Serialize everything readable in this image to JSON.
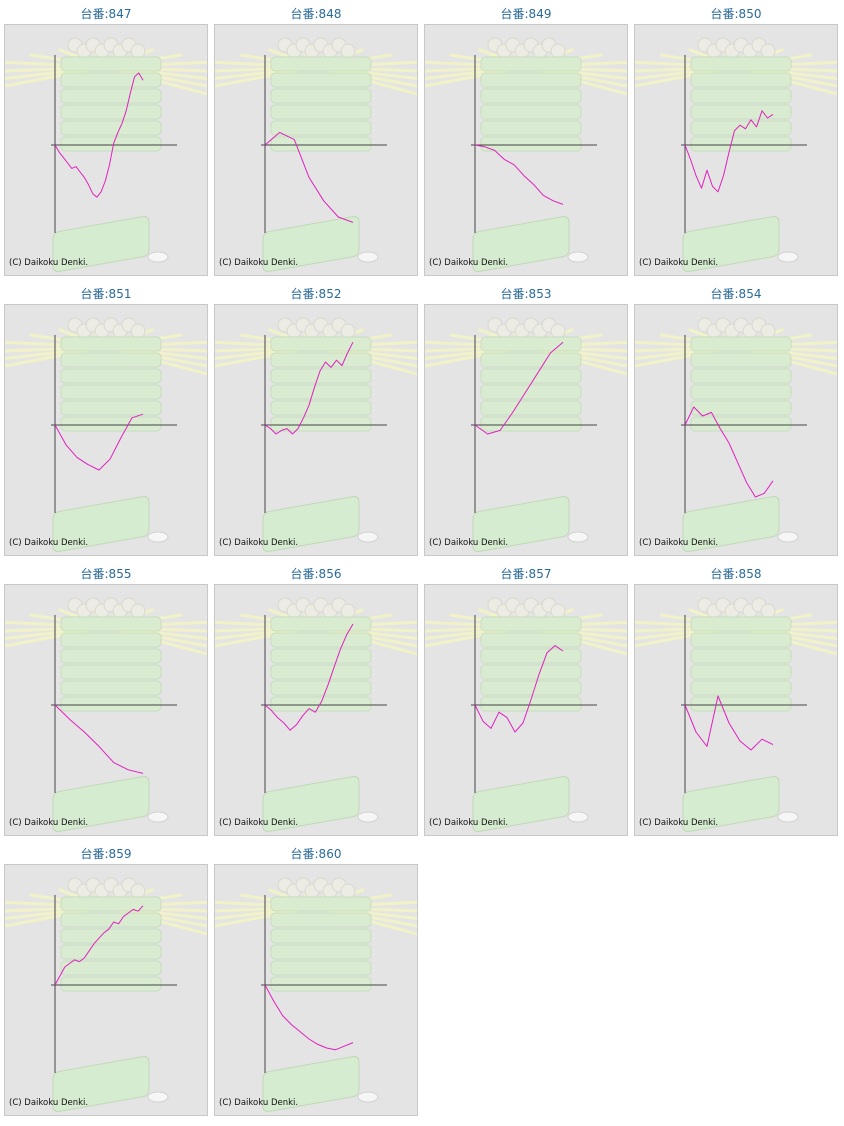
{
  "label_prefix": "台番:",
  "copyright": "(C) Daikoku Denki.",
  "colors": {
    "line": "#e020c0",
    "axis": "#444444",
    "frame_bg": "#e4e4e4",
    "label": "#2a6a9a"
  },
  "chart_data": [
    {
      "type": "line",
      "number": "847",
      "values": [
        0,
        -8,
        -14,
        -20,
        -26,
        -24,
        -30,
        -36,
        -44,
        -54,
        -58,
        -52,
        -40,
        -22,
        2,
        14,
        24,
        38,
        58,
        76,
        80,
        72
      ]
    },
    {
      "type": "line",
      "number": "848",
      "values": [
        0,
        14,
        6,
        -36,
        -62,
        -80,
        -86
      ]
    },
    {
      "type": "line",
      "number": "849",
      "values": [
        0,
        -2,
        -6,
        -16,
        -22,
        -34,
        -44,
        -56,
        -62,
        -66
      ]
    },
    {
      "type": "line",
      "number": "850",
      "values": [
        0,
        -16,
        -34,
        -48,
        -28,
        -46,
        -52,
        -34,
        -8,
        16,
        22,
        18,
        28,
        20,
        38,
        30,
        34
      ]
    },
    {
      "type": "line",
      "number": "851",
      "values": [
        0,
        -22,
        -36,
        -44,
        -50,
        -38,
        -14,
        8,
        12
      ]
    },
    {
      "type": "line",
      "number": "852",
      "values": [
        0,
        -4,
        -10,
        -6,
        -4,
        -10,
        -4,
        8,
        22,
        42,
        60,
        70,
        64,
        72,
        66,
        80,
        92
      ]
    },
    {
      "type": "line",
      "number": "853",
      "values": [
        0,
        -10,
        -6,
        14,
        36,
        58,
        80,
        92
      ]
    },
    {
      "type": "line",
      "number": "854",
      "values": [
        0,
        20,
        10,
        14,
        -4,
        -20,
        -42,
        -64,
        -80,
        -76,
        -62
      ]
    },
    {
      "type": "line",
      "number": "855",
      "values": [
        0,
        -16,
        -30,
        -46,
        -64,
        -72,
        -76
      ]
    },
    {
      "type": "line",
      "number": "856",
      "values": [
        0,
        -6,
        -14,
        -20,
        -28,
        -22,
        -12,
        -4,
        -8,
        4,
        22,
        42,
        62,
        78,
        90
      ]
    },
    {
      "type": "line",
      "number": "857",
      "values": [
        0,
        -18,
        -26,
        -8,
        -14,
        -30,
        -20,
        6,
        34,
        58,
        66,
        60
      ]
    },
    {
      "type": "line",
      "number": "858",
      "values": [
        0,
        -30,
        -46,
        10,
        -20,
        -40,
        -50,
        -38,
        -44
      ]
    },
    {
      "type": "line",
      "number": "859",
      "values": [
        0,
        10,
        20,
        24,
        28,
        26,
        30,
        38,
        46,
        52,
        58,
        62,
        70,
        68,
        76,
        80,
        84,
        82,
        88
      ]
    },
    {
      "type": "line",
      "number": "860",
      "values": [
        0,
        -18,
        -34,
        -44,
        -52,
        -60,
        -66,
        -70,
        -72,
        -68,
        -64
      ]
    }
  ]
}
